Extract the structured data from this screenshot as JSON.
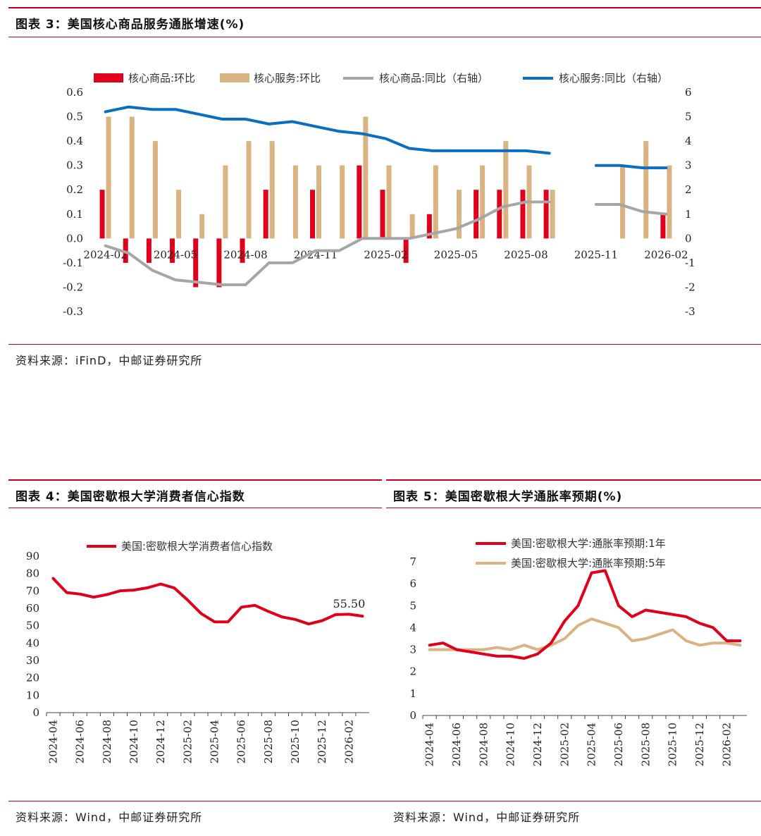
{
  "fig3": {
    "title": "图表 3：美国核心商品服务通胀增速(%)",
    "source": "资料来源：iFinD，中邮证券研究所"
  },
  "fig4": {
    "title": "图表 4：美国密歇根大学消费者信心指数",
    "source": "资料来源：Wind，中邮证券研究所"
  },
  "fig5": {
    "title": "图表 5：美国密歇根大学通胀率预期(%)",
    "source": "资料来源：Wind，中邮证券研究所"
  },
  "colors": {
    "red": "#e0001b",
    "tan": "#d9b382",
    "gray": "#a6a6a6",
    "blue": "#0a6fc0",
    "rule": "#c0001a"
  },
  "chart_data": [
    {
      "type": "bar",
      "x_ticks": [
        "2024-02",
        "2024-05",
        "2024-08",
        "2024-11",
        "2025-02",
        "2025-05",
        "2025-08",
        "2025-11",
        "2026-02"
      ],
      "x": [
        "2024-02",
        "2024-03",
        "2024-04",
        "2024-05",
        "2024-06",
        "2024-07",
        "2024-08",
        "2024-09",
        "2024-10",
        "2024-11",
        "2024-12",
        "2025-01",
        "2025-02",
        "2025-03",
        "2025-04",
        "2025-05",
        "2025-06",
        "2025-07",
        "2025-08",
        "2025-09",
        "2025-10",
        "2025-11",
        "2025-12",
        "2026-01",
        "2026-02"
      ],
      "ylim": [
        -0.3,
        0.6
      ],
      "y_ticks": [
        "0.6",
        "0.5",
        "0.4",
        "0.3",
        "0.2",
        "0.1",
        "0.0",
        "-0.1",
        "-0.2",
        "-0.3"
      ],
      "y2lim": [
        -3,
        6
      ],
      "y2_ticks": [
        "6",
        "5",
        "4",
        "3",
        "2",
        "1",
        "0",
        "-1",
        "-2",
        "-3"
      ],
      "legend": "top",
      "series": [
        {
          "name": "核心商品:环比",
          "kind": "bar",
          "color": "#e0001b",
          "values": [
            0.2,
            -0.1,
            -0.1,
            -0.1,
            -0.2,
            -0.2,
            -0.1,
            0.2,
            0,
            0.2,
            0,
            0.3,
            0.2,
            -0.1,
            0.1,
            0,
            0.2,
            0.2,
            0.2,
            0.2,
            null,
            null,
            null,
            null,
            0.1
          ]
        },
        {
          "name": "核心服务:环比",
          "kind": "bar",
          "color": "#d9b382",
          "values": [
            0.5,
            0.5,
            0.4,
            0.2,
            0.1,
            0.3,
            0.4,
            0.4,
            0.3,
            0.3,
            0.3,
            0.5,
            0.3,
            0.1,
            0.3,
            0.2,
            0.3,
            0.4,
            0.3,
            0.2,
            null,
            null,
            0.3,
            0.4,
            0.3
          ]
        },
        {
          "name": "核心商品:同比（右轴）",
          "kind": "line",
          "axis": "right",
          "color": "#a6a6a6",
          "values": [
            -0.3,
            -0.6,
            -1.3,
            -1.7,
            -1.8,
            -1.9,
            -1.9,
            -1.0,
            -1.0,
            -0.5,
            -0.5,
            0.0,
            0.0,
            0.0,
            0.2,
            0.4,
            0.8,
            1.3,
            1.5,
            1.5,
            null,
            1.4,
            1.4,
            1.1,
            1.0
          ]
        },
        {
          "name": "核心服务:同比（右轴）",
          "kind": "line",
          "axis": "right",
          "color": "#0a6fc0",
          "values": [
            5.2,
            5.4,
            5.3,
            5.3,
            5.1,
            4.9,
            4.9,
            4.7,
            4.8,
            4.6,
            4.4,
            4.3,
            4.1,
            3.7,
            3.6,
            3.6,
            3.6,
            3.6,
            3.6,
            3.5,
            null,
            3.0,
            3.0,
            2.9,
            2.9
          ]
        }
      ]
    },
    {
      "type": "line",
      "x_ticks": [
        "2024-04",
        "2024-06",
        "2024-08",
        "2024-10",
        "2024-12",
        "2025-02",
        "2025-04",
        "2025-06",
        "2025-08",
        "2025-10",
        "2025-12",
        "2026-02"
      ],
      "x": [
        "2024-04",
        "2024-05",
        "2024-06",
        "2024-07",
        "2024-08",
        "2024-09",
        "2024-10",
        "2024-11",
        "2024-12",
        "2025-01",
        "2025-02",
        "2025-03",
        "2025-04",
        "2025-05",
        "2025-06",
        "2025-07",
        "2025-08",
        "2025-09",
        "2025-10",
        "2025-11",
        "2025-12",
        "2026-01",
        "2026-02",
        "2026-03"
      ],
      "ylim": [
        0,
        90
      ],
      "y_ticks": [
        "90",
        "80",
        "70",
        "60",
        "50",
        "40",
        "30",
        "20",
        "10",
        "0"
      ],
      "legend": "top",
      "annotation": "55.50",
      "series": [
        {
          "name": "美国:密歇根大学消费者信心指数",
          "color": "#e0001b",
          "values": [
            77.2,
            69.1,
            68.2,
            66.4,
            67.9,
            70.1,
            70.5,
            71.8,
            74.0,
            71.7,
            64.7,
            57.0,
            52.2,
            52.2,
            60.7,
            61.7,
            58.2,
            55.1,
            53.6,
            51.0,
            52.9,
            56.4,
            56.6,
            55.5
          ]
        }
      ]
    },
    {
      "type": "line",
      "x_ticks": [
        "2024-04",
        "2024-06",
        "2024-08",
        "2024-10",
        "2024-12",
        "2025-02",
        "2025-04",
        "2025-06",
        "2025-08",
        "2025-10",
        "2025-12",
        "2026-02"
      ],
      "x": [
        "2024-04",
        "2024-05",
        "2024-06",
        "2024-07",
        "2024-08",
        "2024-09",
        "2024-10",
        "2024-11",
        "2024-12",
        "2025-01",
        "2025-02",
        "2025-03",
        "2025-04",
        "2025-05",
        "2025-06",
        "2025-07",
        "2025-08",
        "2025-09",
        "2025-10",
        "2025-11",
        "2025-12",
        "2026-01",
        "2026-02",
        "2026-03"
      ],
      "ylim": [
        0,
        7
      ],
      "y_ticks": [
        "7",
        "6",
        "5",
        "4",
        "3",
        "2",
        "1",
        "0"
      ],
      "legend": "top",
      "series": [
        {
          "name": "美国:密歇根大学:通胀率预期:1年",
          "color": "#e0001b",
          "values": [
            3.2,
            3.3,
            3.0,
            2.9,
            2.8,
            2.7,
            2.7,
            2.6,
            2.8,
            3.3,
            4.3,
            5.0,
            6.5,
            6.6,
            5.0,
            4.5,
            4.8,
            4.7,
            4.6,
            4.5,
            4.2,
            4.0,
            3.4,
            3.4
          ]
        },
        {
          "name": "美国:密歇根大学:通胀率预期:5年",
          "color": "#d9b382",
          "values": [
            3.0,
            3.0,
            3.0,
            3.0,
            3.0,
            3.1,
            3.0,
            3.2,
            3.0,
            3.2,
            3.5,
            4.1,
            4.4,
            4.2,
            4.0,
            3.4,
            3.5,
            3.7,
            3.9,
            3.4,
            3.2,
            3.3,
            3.3,
            3.2
          ]
        }
      ]
    }
  ]
}
